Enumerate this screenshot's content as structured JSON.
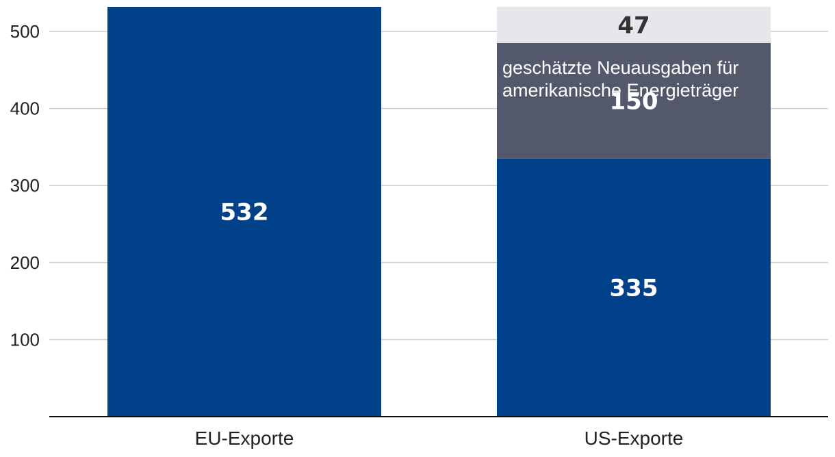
{
  "chart_data": {
    "type": "bar",
    "stacked": true,
    "categories": [
      "EU-Exporte",
      "US-Exporte"
    ],
    "series": [
      {
        "values": [
          532,
          335
        ],
        "color": "#00418A",
        "label_color": "#ffffff"
      },
      {
        "values": [
          0,
          150
        ],
        "color": "#53596B",
        "label_color": "#ffffff"
      },
      {
        "values": [
          0,
          47
        ],
        "color": "#E8E6EB",
        "label_color": "#333333"
      }
    ],
    "annotations": [
      {
        "category": "US-Exporte",
        "series_index": 1,
        "lines": [
          "geschätzte Neuausgaben für",
          "amerikanische Energieträger"
        ]
      }
    ],
    "yticks": [
      100,
      200,
      300,
      400,
      500
    ],
    "ylim": [
      0,
      532
    ],
    "grid": true,
    "title": "",
    "xlabel": "",
    "ylabel": ""
  }
}
